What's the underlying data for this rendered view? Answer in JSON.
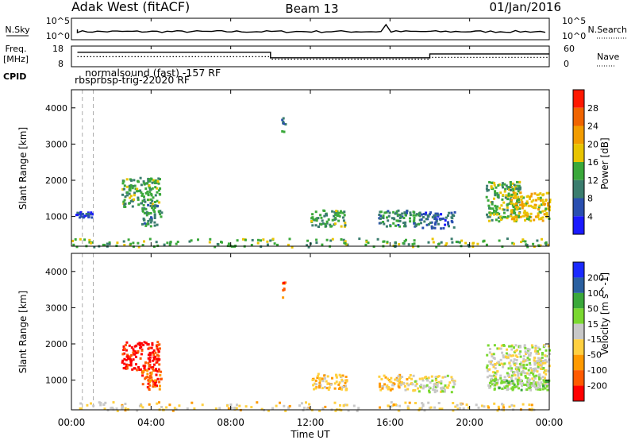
{
  "header": {
    "station": "Adak West (fitACF)",
    "beam": "Beam 13",
    "date": "01/Jan/2016"
  },
  "noise_panel": {
    "left_label": "N.Sky",
    "right_label": "N.Search",
    "left_ticks": [
      "10^5",
      "10^0"
    ],
    "right_ticks": [
      "10^5",
      "10^0"
    ]
  },
  "freq_panel": {
    "left_label_1": "Freq.",
    "left_label_2": "[MHz]",
    "right_label": "Nave",
    "left_ticks": [
      "18",
      "8"
    ],
    "right_ticks": [
      "60",
      "0"
    ],
    "freq_steps_mhz": [
      {
        "t0": 0.3,
        "t1": 10.0,
        "v": 15.0
      },
      {
        "t0": 10.0,
        "t1": 18.0,
        "v": 12.3
      },
      {
        "t0": 18.0,
        "t1": 24.0,
        "v": 14.2
      }
    ],
    "nave_steps": [
      {
        "t0": 0.3,
        "t1": 10.0,
        "v": 29
      },
      {
        "t0": 10.0,
        "t1": 18.0,
        "v": 22
      },
      {
        "t0": 18.0,
        "t1": 24.0,
        "v": 27
      }
    ]
  },
  "cpid": {
    "label": "CPID",
    "line1": "normalsound (fast) -157 RF",
    "line2": "rbsprbsp-trig-22020 RF"
  },
  "x_axis": {
    "label": "Time UT",
    "ticks": [
      "00:00",
      "04:00",
      "08:00",
      "12:00",
      "16:00",
      "20:00",
      "00:00"
    ],
    "range_hours": [
      0,
      24
    ]
  },
  "colors": {
    "power": [
      "#1a1aff",
      "#2a4fb0",
      "#3b7d6e",
      "#3aa83a",
      "#e8c400",
      "#f29c00",
      "#f06400",
      "#ff1800"
    ],
    "velocity": [
      "#ff0000",
      "#ff5a00",
      "#ff9a00",
      "#ffd040",
      "#c8c8c8",
      "#7ad830",
      "#3aa83a",
      "#2a60a0",
      "#1a2aff"
    ]
  },
  "chart_data": [
    {
      "type": "heatmap",
      "title": "Power",
      "ylabel": "Slant Range [km]",
      "xlabel": "",
      "ylim": [
        180,
        4500
      ],
      "y_ticks": [
        "1000",
        "2000",
        "3000",
        "4000"
      ],
      "colorbar_label": "Power [dB]",
      "colorbar_ticks": [
        "4",
        "8",
        "12",
        "16",
        "20",
        "24",
        "28"
      ],
      "clim": [
        0,
        32
      ],
      "regions": [
        {
          "t0": 2.5,
          "t1": 4.4,
          "r0": 1300,
          "r1": 2100,
          "v": 13
        },
        {
          "t0": 3.5,
          "t1": 4.5,
          "r0": 750,
          "r1": 1350,
          "v": 11
        },
        {
          "t0": 10.5,
          "t1": 10.7,
          "r0": 3300,
          "r1": 3750,
          "v": 10
        },
        {
          "t0": 12.0,
          "t1": 13.8,
          "r0": 750,
          "r1": 1200,
          "v": 13
        },
        {
          "t0": 15.4,
          "t1": 17.5,
          "r0": 750,
          "r1": 1200,
          "v": 11
        },
        {
          "t0": 17.5,
          "t1": 19.2,
          "r0": 700,
          "r1": 1150,
          "v": 7
        },
        {
          "t0": 20.8,
          "t1": 22.5,
          "r0": 900,
          "r1": 2000,
          "v": 14
        },
        {
          "t0": 22.0,
          "t1": 24.0,
          "r0": 900,
          "r1": 1700,
          "v": 19
        },
        {
          "t0": 0.1,
          "t1": 1.0,
          "r0": 1000,
          "r1": 1150,
          "v": 5
        },
        {
          "t0": 0.0,
          "t1": 24.0,
          "r0": 180,
          "r1": 420,
          "v": 14
        }
      ]
    },
    {
      "type": "heatmap",
      "title": "Velocity",
      "ylabel": "Slant Range [km]",
      "xlabel": "Time UT",
      "ylim": [
        180,
        4500
      ],
      "y_ticks": [
        "1000",
        "2000",
        "3000",
        "4000"
      ],
      "colorbar_label": "Velocity [m s^-1]",
      "colorbar_ticks": [
        "200",
        "100",
        "50",
        "15",
        "-15",
        "-50",
        "-100",
        "-200"
      ],
      "clim": [
        -250,
        250
      ],
      "regions": [
        {
          "t0": 2.5,
          "t1": 4.4,
          "r0": 1300,
          "r1": 2100,
          "v": -220
        },
        {
          "t0": 3.5,
          "t1": 4.5,
          "r0": 750,
          "r1": 1350,
          "v": -180
        },
        {
          "t0": 10.5,
          "t1": 10.7,
          "r0": 3300,
          "r1": 3750,
          "v": -160
        },
        {
          "t0": 12.0,
          "t1": 13.8,
          "r0": 750,
          "r1": 1200,
          "v": -60
        },
        {
          "t0": 15.4,
          "t1": 17.0,
          "r0": 750,
          "r1": 1200,
          "v": -70
        },
        {
          "t0": 17.0,
          "t1": 19.2,
          "r0": 700,
          "r1": 1150,
          "v": 0
        },
        {
          "t0": 20.8,
          "t1": 24.0,
          "r0": 900,
          "r1": 2000,
          "v": 5
        },
        {
          "t0": 20.8,
          "t1": 24.0,
          "r0": 750,
          "r1": 1050,
          "v": 30
        },
        {
          "t0": 0.0,
          "t1": 24.0,
          "r0": 180,
          "r1": 420,
          "v": -40
        }
      ]
    }
  ]
}
